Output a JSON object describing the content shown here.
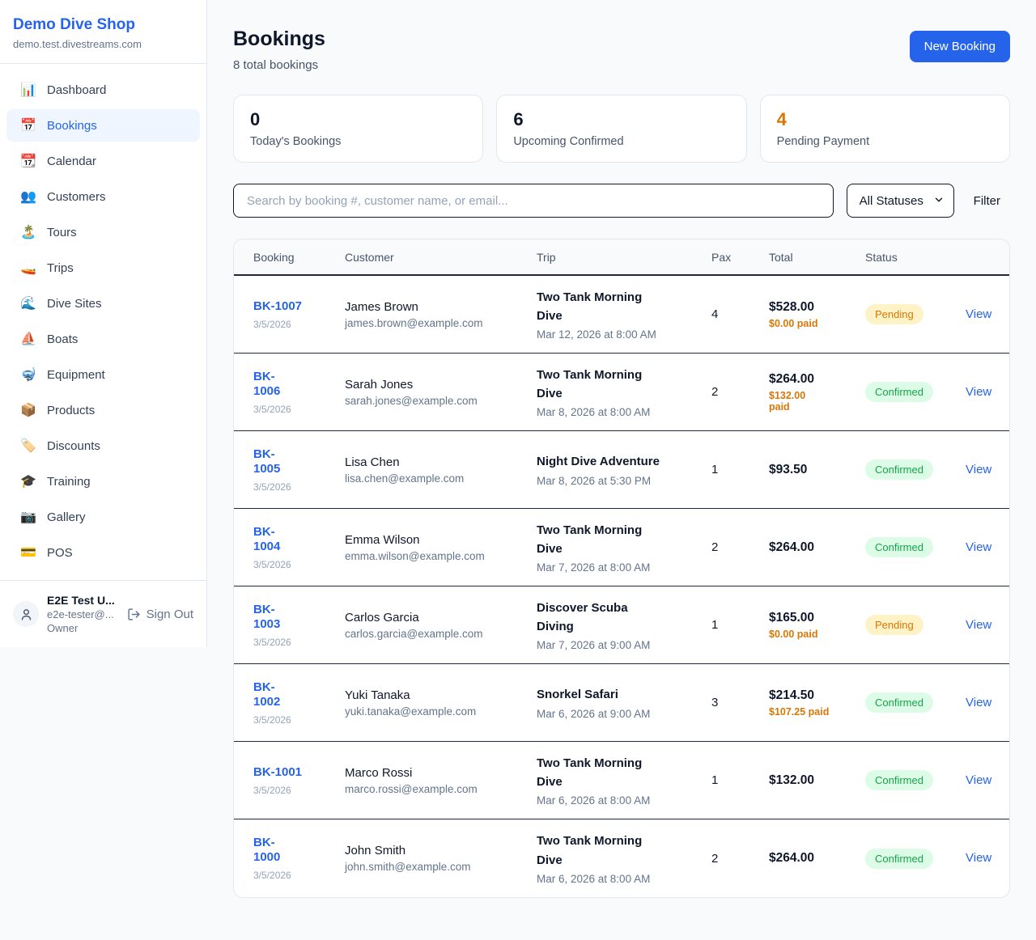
{
  "sidebar": {
    "shop_name": "Demo Dive Shop",
    "shop_domain": "demo.test.divestreams.com",
    "items": [
      {
        "label": "Dashboard",
        "icon": "📊",
        "icon_name": "bar-chart-icon",
        "active": false
      },
      {
        "label": "Bookings",
        "icon": "📅",
        "icon_name": "calendar-date-icon",
        "active": true
      },
      {
        "label": "Calendar",
        "icon": "📆",
        "icon_name": "tear-off-calendar-icon",
        "active": false
      },
      {
        "label": "Customers",
        "icon": "👥",
        "icon_name": "people-icon",
        "active": false
      },
      {
        "label": "Tours",
        "icon": "🏝️",
        "icon_name": "island-icon",
        "active": false
      },
      {
        "label": "Trips",
        "icon": "🚤",
        "icon_name": "speedboat-icon",
        "active": false
      },
      {
        "label": "Dive Sites",
        "icon": "🌊",
        "icon_name": "wave-icon",
        "active": false
      },
      {
        "label": "Boats",
        "icon": "⛵",
        "icon_name": "sailboat-icon",
        "active": false
      },
      {
        "label": "Equipment",
        "icon": "🤿",
        "icon_name": "diving-mask-icon",
        "active": false
      },
      {
        "label": "Products",
        "icon": "📦",
        "icon_name": "package-icon",
        "active": false
      },
      {
        "label": "Discounts",
        "icon": "🏷️",
        "icon_name": "tag-icon",
        "active": false
      },
      {
        "label": "Training",
        "icon": "🎓",
        "icon_name": "graduation-cap-icon",
        "active": false
      },
      {
        "label": "Gallery",
        "icon": "📷",
        "icon_name": "camera-icon",
        "active": false
      },
      {
        "label": "POS",
        "icon": "💳",
        "icon_name": "credit-card-icon",
        "active": false
      }
    ],
    "user": {
      "name": "E2E Test U...",
      "email": "e2e-tester@...",
      "role": "Owner",
      "sign_out_label": "Sign Out"
    }
  },
  "header": {
    "title": "Bookings",
    "subtitle": "8 total bookings",
    "new_booking_label": "New Booking"
  },
  "stats": [
    {
      "value": "0",
      "label": "Today's Bookings",
      "accent": false
    },
    {
      "value": "6",
      "label": "Upcoming Confirmed",
      "accent": false
    },
    {
      "value": "4",
      "label": "Pending Payment",
      "accent": true
    }
  ],
  "controls": {
    "search_placeholder": "Search by booking #, customer name, or email...",
    "status_filter_value": "All Statuses",
    "filter_label": "Filter"
  },
  "table": {
    "columns": [
      "Booking",
      "Customer",
      "Trip",
      "Pax",
      "Total",
      "Status"
    ],
    "view_label": "View",
    "rows": [
      {
        "id_display": "BK-1007",
        "date": "3/5/2026",
        "customer_name": "James Brown",
        "customer_email": "james.brown@example.com",
        "trip_display": "Two Tank Morning\nDive",
        "trip_datetime": "Mar 12, 2026 at 8:00 AM",
        "pax": "4",
        "total": "$528.00",
        "paid_display": "$0.00 paid",
        "status": "Pending"
      },
      {
        "id_display": "BK-\n1006",
        "date": "3/5/2026",
        "customer_name": "Sarah Jones",
        "customer_email": "sarah.jones@example.com",
        "trip_display": "Two Tank Morning\nDive",
        "trip_datetime": "Mar 8, 2026 at 8:00 AM",
        "pax": "2",
        "total": "$264.00",
        "paid_display": "$132.00\npaid",
        "status": "Confirmed"
      },
      {
        "id_display": "BK-\n1005",
        "date": "3/5/2026",
        "customer_name": "Lisa Chen",
        "customer_email": "lisa.chen@example.com",
        "trip_display": "Night Dive Adventure",
        "trip_datetime": "Mar 8, 2026 at 5:30 PM",
        "pax": "1",
        "total": "$93.50",
        "paid_display": "",
        "status": "Confirmed"
      },
      {
        "id_display": "BK-\n1004",
        "date": "3/5/2026",
        "customer_name": "Emma Wilson",
        "customer_email": "emma.wilson@example.com",
        "trip_display": "Two Tank Morning\nDive",
        "trip_datetime": "Mar 7, 2026 at 8:00 AM",
        "pax": "2",
        "total": "$264.00",
        "paid_display": "",
        "status": "Confirmed"
      },
      {
        "id_display": "BK-\n1003",
        "date": "3/5/2026",
        "customer_name": "Carlos Garcia",
        "customer_email": "carlos.garcia@example.com",
        "trip_display": "Discover Scuba\nDiving",
        "trip_datetime": "Mar 7, 2026 at 9:00 AM",
        "pax": "1",
        "total": "$165.00",
        "paid_display": "$0.00 paid",
        "status": "Pending"
      },
      {
        "id_display": "BK-\n1002",
        "date": "3/5/2026",
        "customer_name": "Yuki Tanaka",
        "customer_email": "yuki.tanaka@example.com",
        "trip_display": "Snorkel Safari",
        "trip_datetime": "Mar 6, 2026 at 9:00 AM",
        "pax": "3",
        "total": "$214.50",
        "paid_display": "$107.25 paid",
        "status": "Confirmed"
      },
      {
        "id_display": "BK-1001",
        "date": "3/5/2026",
        "customer_name": "Marco Rossi",
        "customer_email": "marco.rossi@example.com",
        "trip_display": "Two Tank Morning\nDive",
        "trip_datetime": "Mar 6, 2026 at 8:00 AM",
        "pax": "1",
        "total": "$132.00",
        "paid_display": "",
        "status": "Confirmed"
      },
      {
        "id_display": "BK-\n1000",
        "date": "3/5/2026",
        "customer_name": "John Smith",
        "customer_email": "john.smith@example.com",
        "trip_display": "Two Tank Morning\nDive",
        "trip_datetime": "Mar 6, 2026 at 8:00 AM",
        "pax": "2",
        "total": "$264.00",
        "paid_display": "",
        "status": "Confirmed"
      }
    ]
  },
  "colors": {
    "accent": "#2563eb",
    "pending_text": "#d97706",
    "pending_bg": "#fef3c7",
    "confirmed_text": "#16a34a",
    "confirmed_bg": "#dcfce7"
  }
}
